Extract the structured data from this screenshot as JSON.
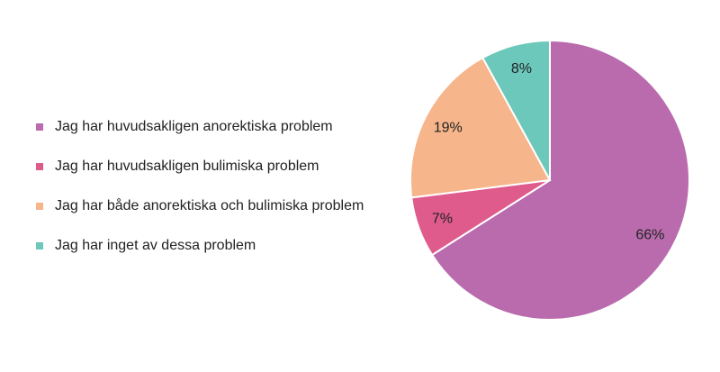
{
  "chart_data": {
    "type": "pie",
    "categories": [
      "Jag har huvudsakligen anorektiska problem",
      "Jag har huvudsakligen bulimiska problem",
      "Jag har både anorektiska och bulimiska problem",
      "Jag har inget av dessa problem"
    ],
    "values": [
      66,
      7,
      19,
      8
    ],
    "value_labels": [
      "66%",
      "7%",
      "19%",
      "8%"
    ],
    "colors": [
      "#b96bae",
      "#de5b8c",
      "#f6b58a",
      "#6cc8bb"
    ],
    "legend": "left"
  }
}
